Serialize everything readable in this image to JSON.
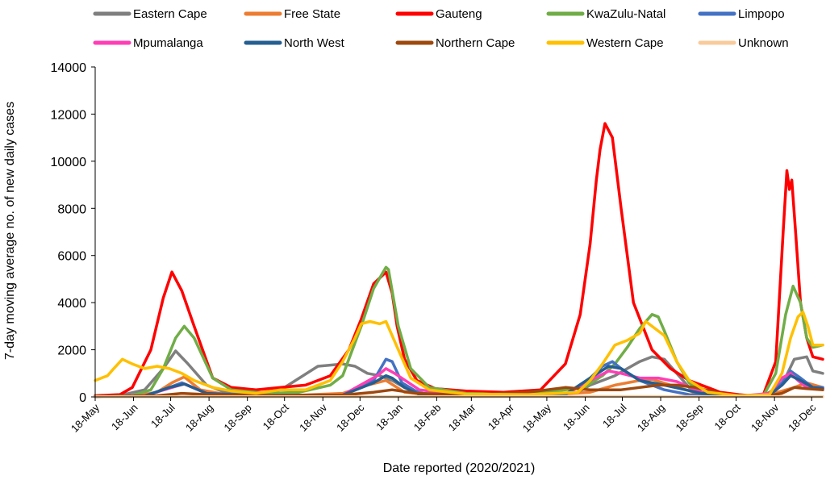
{
  "chart_data": {
    "type": "line",
    "xlabel": "Date reported (2020/2021)",
    "ylabel": "7-day moving average no. of new daily cases",
    "ylim": [
      0,
      14000
    ],
    "yticks": [
      0,
      2000,
      4000,
      6000,
      8000,
      10000,
      12000,
      14000
    ],
    "ytick_labels": [
      "0",
      "2000",
      "4000",
      "6000",
      "8000",
      "10000",
      "12000",
      "14000"
    ],
    "x_unit": "days since 18-May-2020",
    "xlim": [
      0,
      588
    ],
    "xticks": [
      0,
      31,
      61,
      92,
      123,
      153,
      184,
      214,
      245,
      276,
      304,
      335,
      365,
      396,
      426,
      457,
      488,
      518,
      549,
      579
    ],
    "xtick_labels": [
      "18-May",
      "18-Jun",
      "18-Jul",
      "18-Aug",
      "18-Sep",
      "18-Oct",
      "18-Nov",
      "18-Dec",
      "18-Jan",
      "18-Feb",
      "18-Mar",
      "18-Apr",
      "18-May",
      "18-Jun",
      "18-Jul",
      "18-Aug",
      "18-Sep",
      "18-Oct",
      "18-Nov",
      "18-Dec"
    ],
    "grid": false,
    "legend_position": "top",
    "series": [
      {
        "name": "Eastern Cape",
        "color": "#7f7f7f",
        "x": [
          0,
          20,
          40,
          55,
          65,
          75,
          90,
          105,
          125,
          150,
          165,
          180,
          190,
          200,
          210,
          220,
          230,
          240,
          250,
          265,
          290,
          330,
          370,
          390,
          400,
          410,
          420,
          430,
          440,
          450,
          460,
          470,
          480,
          490,
          510,
          540,
          555,
          565,
          575,
          580,
          588
        ],
        "y": [
          30,
          60,
          300,
          1200,
          1950,
          1400,
          500,
          200,
          100,
          300,
          800,
          1300,
          1350,
          1400,
          1300,
          1000,
          900,
          700,
          400,
          150,
          80,
          50,
          80,
          200,
          500,
          700,
          900,
          1200,
          1500,
          1700,
          1600,
          1000,
          400,
          150,
          50,
          50,
          500,
          1600,
          1700,
          1100,
          1000
        ]
      },
      {
        "name": "Free State",
        "color": "#ed7d31",
        "x": [
          0,
          30,
          50,
          62,
          72,
          85,
          110,
          150,
          200,
          220,
          235,
          250,
          280,
          350,
          400,
          420,
          440,
          450,
          465,
          490,
          540,
          565,
          575,
          588
        ],
        "y": [
          5,
          30,
          200,
          600,
          850,
          300,
          60,
          40,
          150,
          500,
          700,
          200,
          50,
          40,
          200,
          500,
          700,
          750,
          500,
          100,
          20,
          400,
          600,
          400
        ]
      },
      {
        "name": "Gauteng",
        "color": "#ff0000",
        "x": [
          0,
          20,
          30,
          45,
          55,
          62,
          70,
          80,
          95,
          110,
          130,
          150,
          170,
          190,
          205,
          215,
          225,
          235,
          240,
          244,
          250,
          260,
          275,
          300,
          330,
          360,
          380,
          392,
          400,
          405,
          408,
          412,
          418,
          425,
          435,
          450,
          465,
          480,
          495,
          505,
          520,
          530,
          540,
          550,
          556,
          559,
          561,
          563,
          566,
          570,
          575,
          580,
          588
        ],
        "y": [
          50,
          100,
          400,
          2000,
          4200,
          5300,
          4500,
          3000,
          800,
          400,
          300,
          400,
          500,
          900,
          2000,
          3300,
          4800,
          5300,
          4400,
          3000,
          1600,
          700,
          350,
          250,
          200,
          300,
          1400,
          3500,
          6500,
          9200,
          10500,
          11600,
          11000,
          8000,
          4000,
          2000,
          1200,
          700,
          400,
          200,
          100,
          50,
          100,
          1500,
          7000,
          9600,
          8800,
          9200,
          7000,
          4000,
          2500,
          1700,
          1600
        ]
      },
      {
        "name": "KwaZulu-Natal",
        "color": "#70ad47",
        "x": [
          0,
          30,
          45,
          55,
          65,
          72,
          80,
          95,
          110,
          140,
          165,
          190,
          200,
          215,
          225,
          235,
          237,
          245,
          255,
          270,
          300,
          350,
          395,
          410,
          420,
          430,
          440,
          450,
          455,
          460,
          470,
          480,
          490,
          510,
          540,
          550,
          558,
          564,
          570,
          575,
          580,
          588
        ],
        "y": [
          20,
          50,
          300,
          1200,
          2500,
          3000,
          2500,
          800,
          300,
          150,
          200,
          500,
          900,
          3000,
          4600,
          5500,
          5400,
          3000,
          1200,
          400,
          150,
          100,
          400,
          900,
          1400,
          2100,
          2900,
          3500,
          3400,
          2800,
          1500,
          600,
          200,
          50,
          50,
          1000,
          3500,
          4700,
          4000,
          2500,
          2100,
          2200
        ]
      },
      {
        "name": "Limpopo",
        "color": "#4472c4",
        "x": [
          0,
          40,
          60,
          70,
          90,
          130,
          200,
          225,
          235,
          240,
          248,
          262,
          300,
          380,
          400,
          410,
          418,
          425,
          440,
          460,
          480,
          520,
          545,
          555,
          562,
          570,
          580,
          588
        ],
        "y": [
          5,
          30,
          400,
          600,
          150,
          50,
          60,
          700,
          1600,
          1500,
          600,
          150,
          40,
          100,
          800,
          1300,
          1500,
          1200,
          700,
          300,
          100,
          20,
          100,
          600,
          1100,
          800,
          400,
          400
        ]
      },
      {
        "name": "Mpumalanga",
        "color": "#ff3eb5",
        "x": [
          0,
          40,
          62,
          72,
          90,
          130,
          200,
          228,
          235,
          242,
          262,
          300,
          380,
          400,
          415,
          425,
          440,
          455,
          470,
          490,
          520,
          545,
          555,
          562,
          568,
          575,
          588
        ],
        "y": [
          5,
          50,
          400,
          550,
          150,
          50,
          80,
          900,
          1200,
          1000,
          300,
          50,
          100,
          700,
          1100,
          1000,
          800,
          800,
          650,
          200,
          30,
          150,
          800,
          1000,
          700,
          400,
          350
        ]
      },
      {
        "name": "North West",
        "color": "#255e91",
        "x": [
          0,
          40,
          60,
          72,
          90,
          130,
          200,
          225,
          235,
          240,
          250,
          262,
          300,
          380,
          400,
          415,
          425,
          440,
          460,
          490,
          520,
          545,
          555,
          562,
          570,
          580,
          588
        ],
        "y": [
          5,
          40,
          400,
          550,
          150,
          60,
          80,
          600,
          900,
          800,
          400,
          100,
          40,
          100,
          800,
          1300,
          1200,
          700,
          500,
          150,
          20,
          80,
          500,
          900,
          700,
          400,
          350
        ]
      },
      {
        "name": "Northern Cape",
        "color": "#9e480e",
        "x": [
          0,
          50,
          70,
          90,
          140,
          200,
          225,
          240,
          260,
          300,
          350,
          380,
          400,
          425,
          440,
          455,
          470,
          485,
          510,
          540,
          555,
          565,
          575,
          588
        ],
        "y": [
          10,
          50,
          150,
          100,
          60,
          80,
          200,
          300,
          150,
          80,
          200,
          400,
          300,
          300,
          400,
          500,
          500,
          400,
          100,
          30,
          150,
          400,
          350,
          300
        ]
      },
      {
        "name": "Western Cape",
        "color": "#ffc000",
        "x": [
          0,
          10,
          15,
          22,
          30,
          40,
          50,
          60,
          70,
          80,
          95,
          110,
          130,
          150,
          170,
          190,
          200,
          210,
          215,
          222,
          230,
          235,
          245,
          255,
          270,
          300,
          350,
          390,
          400,
          410,
          420,
          430,
          440,
          445,
          450,
          460,
          470,
          480,
          495,
          520,
          545,
          555,
          562,
          568,
          572,
          576,
          580,
          588
        ],
        "y": [
          700,
          900,
          1200,
          1600,
          1400,
          1200,
          1300,
          1200,
          1000,
          700,
          400,
          250,
          150,
          300,
          300,
          700,
          1500,
          2500,
          3100,
          3200,
          3100,
          3200,
          2000,
          800,
          300,
          120,
          100,
          200,
          700,
          1400,
          2200,
          2400,
          2700,
          3200,
          3000,
          2600,
          1500,
          700,
          200,
          50,
          100,
          1000,
          2500,
          3400,
          3600,
          3000,
          2200,
          2200
        ]
      },
      {
        "name": "Unknown",
        "color": "#f9cb9c",
        "x": [
          0,
          100,
          200,
          300,
          400,
          500,
          588
        ],
        "y": [
          5,
          10,
          10,
          10,
          20,
          10,
          10
        ]
      }
    ]
  }
}
